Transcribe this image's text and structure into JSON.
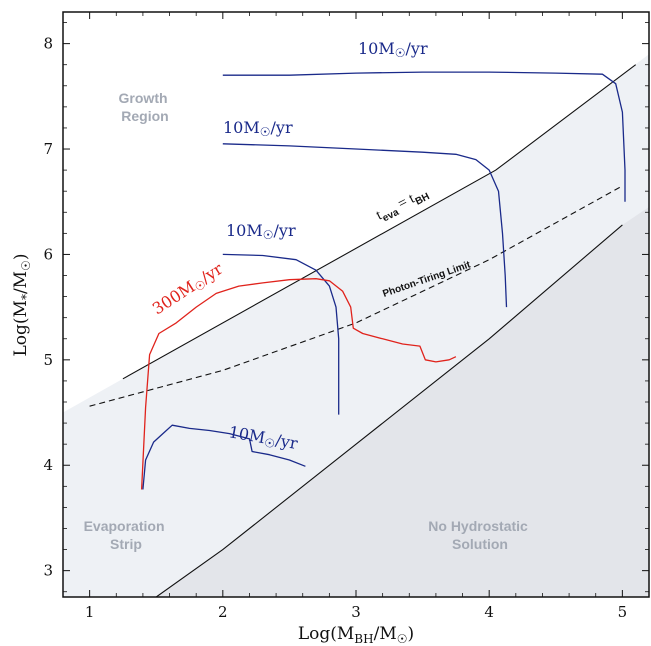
{
  "chart_data": {
    "type": "line",
    "xlabel": "Log(M_BH/M_☉)",
    "ylabel": "Log(M_*/M_☉)",
    "xlim": [
      0.8,
      5.2
    ],
    "ylim": [
      2.75,
      8.3
    ],
    "x_ticks": [
      "1",
      "2",
      "3",
      "4",
      "5"
    ],
    "y_ticks": [
      "3",
      "4",
      "5",
      "6",
      "7",
      "8"
    ],
    "regions": {
      "growth": "Growth\nRegion",
      "evaporation": "Evaporation\nStrip",
      "no_hydrostatic": "No Hydrostatic\nSolution"
    },
    "lines": {
      "t_eva": {
        "label": "t_eva = t_BH",
        "x": [
          1.25,
          4.05,
          5.1
        ],
        "y": [
          4.82,
          6.8,
          7.8
        ]
      },
      "photon_tiring": {
        "label": "Photon-Tiring Limit",
        "x": [
          1.0,
          2.0,
          3.0,
          4.0,
          5.0
        ],
        "y": [
          4.56,
          4.9,
          5.35,
          5.95,
          6.65
        ]
      },
      "hydrostatic": {
        "x": [
          1.5,
          2.0,
          3.0,
          4.0,
          5.0
        ],
        "y": [
          2.75,
          3.2,
          4.2,
          5.2,
          6.28
        ]
      }
    },
    "series": [
      {
        "name": "10M_☉/yr",
        "color": "#1a2a8a",
        "points": [
          [
            2.0,
            7.7
          ],
          [
            2.5,
            7.7
          ],
          [
            3.0,
            7.72
          ],
          [
            3.5,
            7.73
          ],
          [
            4.0,
            7.73
          ],
          [
            4.5,
            7.72
          ],
          [
            4.85,
            7.71
          ],
          [
            4.95,
            7.62
          ],
          [
            5.0,
            7.35
          ],
          [
            5.02,
            6.8
          ],
          [
            5.02,
            6.5
          ]
        ]
      },
      {
        "name": "10M_☉/yr",
        "color": "#1a2a8a",
        "points": [
          [
            2.0,
            7.05
          ],
          [
            2.5,
            7.03
          ],
          [
            3.0,
            7.0
          ],
          [
            3.5,
            6.97
          ],
          [
            3.75,
            6.95
          ],
          [
            3.9,
            6.9
          ],
          [
            4.0,
            6.8
          ],
          [
            4.07,
            6.6
          ],
          [
            4.1,
            6.2
          ],
          [
            4.12,
            5.8
          ],
          [
            4.13,
            5.5
          ]
        ]
      },
      {
        "name": "10M_☉/yr",
        "color": "#1a2a8a",
        "points": [
          [
            2.0,
            6.0
          ],
          [
            2.3,
            5.99
          ],
          [
            2.55,
            5.95
          ],
          [
            2.7,
            5.85
          ],
          [
            2.8,
            5.7
          ],
          [
            2.85,
            5.5
          ],
          [
            2.87,
            5.2
          ],
          [
            2.87,
            4.8
          ],
          [
            2.87,
            4.48
          ]
        ]
      },
      {
        "name": "300M_☉/yr",
        "color": "#e0231c",
        "points": [
          [
            1.39,
            3.77
          ],
          [
            1.42,
            4.55
          ],
          [
            1.45,
            5.05
          ],
          [
            1.52,
            5.25
          ],
          [
            1.65,
            5.35
          ],
          [
            1.8,
            5.5
          ],
          [
            1.95,
            5.63
          ],
          [
            2.12,
            5.7
          ],
          [
            2.3,
            5.73
          ],
          [
            2.5,
            5.76
          ],
          [
            2.7,
            5.77
          ],
          [
            2.8,
            5.75
          ],
          [
            2.9,
            5.65
          ],
          [
            2.96,
            5.5
          ],
          [
            2.98,
            5.3
          ],
          [
            3.05,
            5.25
          ],
          [
            3.2,
            5.2
          ],
          [
            3.35,
            5.15
          ],
          [
            3.48,
            5.13
          ],
          [
            3.52,
            5.0
          ],
          [
            3.6,
            4.98
          ],
          [
            3.7,
            5.0
          ],
          [
            3.75,
            5.03
          ]
        ]
      },
      {
        "name": "10M_☉/yr",
        "color": "#1a2a8a",
        "points": [
          [
            1.4,
            3.77
          ],
          [
            1.42,
            4.05
          ],
          [
            1.48,
            4.22
          ],
          [
            1.55,
            4.3
          ],
          [
            1.62,
            4.38
          ],
          [
            1.75,
            4.35
          ],
          [
            1.9,
            4.33
          ],
          [
            2.05,
            4.3
          ],
          [
            2.2,
            4.25
          ],
          [
            2.22,
            4.13
          ],
          [
            2.35,
            4.1
          ],
          [
            2.5,
            4.05
          ],
          [
            2.62,
            3.99
          ]
        ]
      }
    ]
  }
}
